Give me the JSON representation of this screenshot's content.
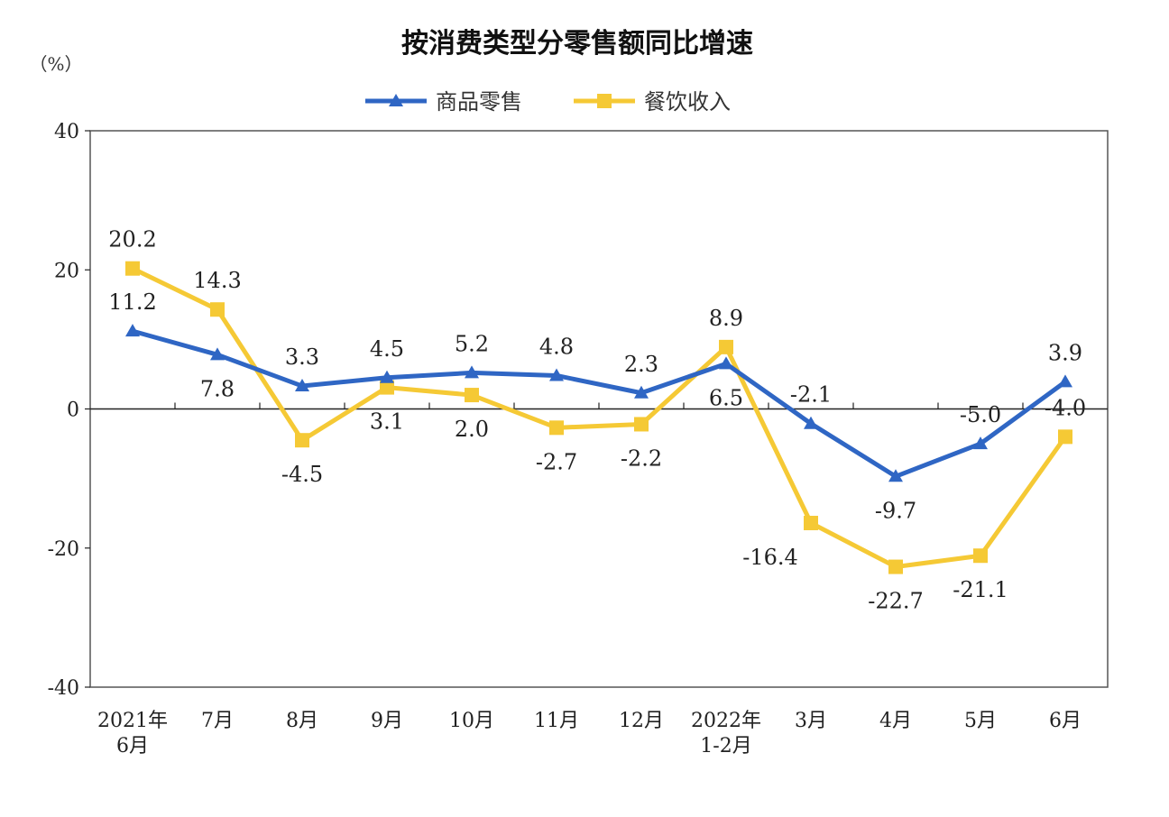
{
  "chart_data": {
    "type": "line",
    "title": "按消费类型分零售额同比增速",
    "ylabel": "（%）",
    "ylim": [
      -40,
      40
    ],
    "yticks": [
      40,
      20,
      0,
      -20,
      -40
    ],
    "grid": false,
    "legend_placement": "top",
    "categories": [
      [
        "2021年",
        "6月"
      ],
      [
        "7月"
      ],
      [
        "8月"
      ],
      [
        "9月"
      ],
      [
        "10月"
      ],
      [
        "11月"
      ],
      [
        "12月"
      ],
      [
        "2022年",
        "1-2月"
      ],
      [
        "3月"
      ],
      [
        "4月"
      ],
      [
        "5月"
      ],
      [
        "6月"
      ]
    ],
    "series": [
      {
        "name": "商品零售",
        "color": "#2f66c4",
        "marker": "triangle",
        "values": [
          11.2,
          7.8,
          3.3,
          4.5,
          5.2,
          4.8,
          2.3,
          6.5,
          -2.1,
          -9.7,
          -5.0,
          3.9
        ],
        "labels": [
          "11.2",
          "7.8",
          "3.3",
          "4.5",
          "5.2",
          "4.8",
          "2.3",
          "6.5",
          "-2.1",
          "-9.7",
          "-5.0",
          "3.9"
        ],
        "label_side": [
          "above",
          "below",
          "above",
          "above",
          "above",
          "above",
          "above",
          "below",
          "above",
          "below",
          "above",
          "above"
        ]
      },
      {
        "name": "餐饮收入",
        "color": "#f5c935",
        "marker": "square",
        "values": [
          20.2,
          14.3,
          -4.5,
          3.1,
          2.0,
          -2.7,
          -2.2,
          8.9,
          -16.4,
          -22.7,
          -21.1,
          -4.0
        ],
        "labels": [
          "20.2",
          "14.3",
          "-4.5",
          "3.1",
          "2.0",
          "-2.7",
          "-2.2",
          "8.9",
          "-16.4",
          "-22.7",
          "-21.1",
          "-4.0"
        ],
        "label_side": [
          "above",
          "above",
          "below",
          "below",
          "below",
          "below",
          "below",
          "above",
          "below",
          "below",
          "below",
          "above"
        ]
      }
    ]
  }
}
